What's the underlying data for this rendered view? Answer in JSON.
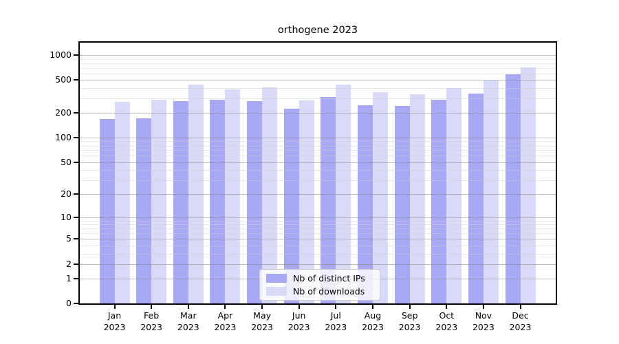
{
  "chart_data": {
    "type": "bar",
    "title": "orthogene 2023",
    "categories": [
      "Jan",
      "Feb",
      "Mar",
      "Apr",
      "May",
      "Jun",
      "Jul",
      "Aug",
      "Sep",
      "Oct",
      "Nov",
      "Dec"
    ],
    "year_label": "2023",
    "series": [
      {
        "name": "Nb of distinct IPs",
        "color": "#a8a8f5",
        "values": [
          167,
          172,
          276,
          289,
          280,
          224,
          314,
          246,
          244,
          286,
          345,
          591
        ]
      },
      {
        "name": "Nb of downloads",
        "color": "#d9d9f8",
        "values": [
          271,
          289,
          444,
          387,
          404,
          285,
          440,
          357,
          338,
          399,
          498,
          715
        ]
      }
    ],
    "y_scale": "log10(value+1)",
    "y_ticks": [
      0,
      1,
      2,
      5,
      10,
      20,
      50,
      100,
      200,
      500,
      1000
    ],
    "y_minor_ticks": [
      3,
      4,
      6,
      7,
      8,
      9,
      30,
      40,
      60,
      70,
      80,
      90,
      300,
      400,
      600,
      700,
      800,
      900
    ],
    "ylim": [
      0,
      1417
    ],
    "grid": true,
    "legend_position": "lower center",
    "xlabel": "",
    "ylabel": ""
  },
  "colors": {
    "spine": "#000000",
    "grid_major": "#808080",
    "grid_minor": "#d0d0d0",
    "background": "#ffffff",
    "legend_border": "#cccccc"
  }
}
